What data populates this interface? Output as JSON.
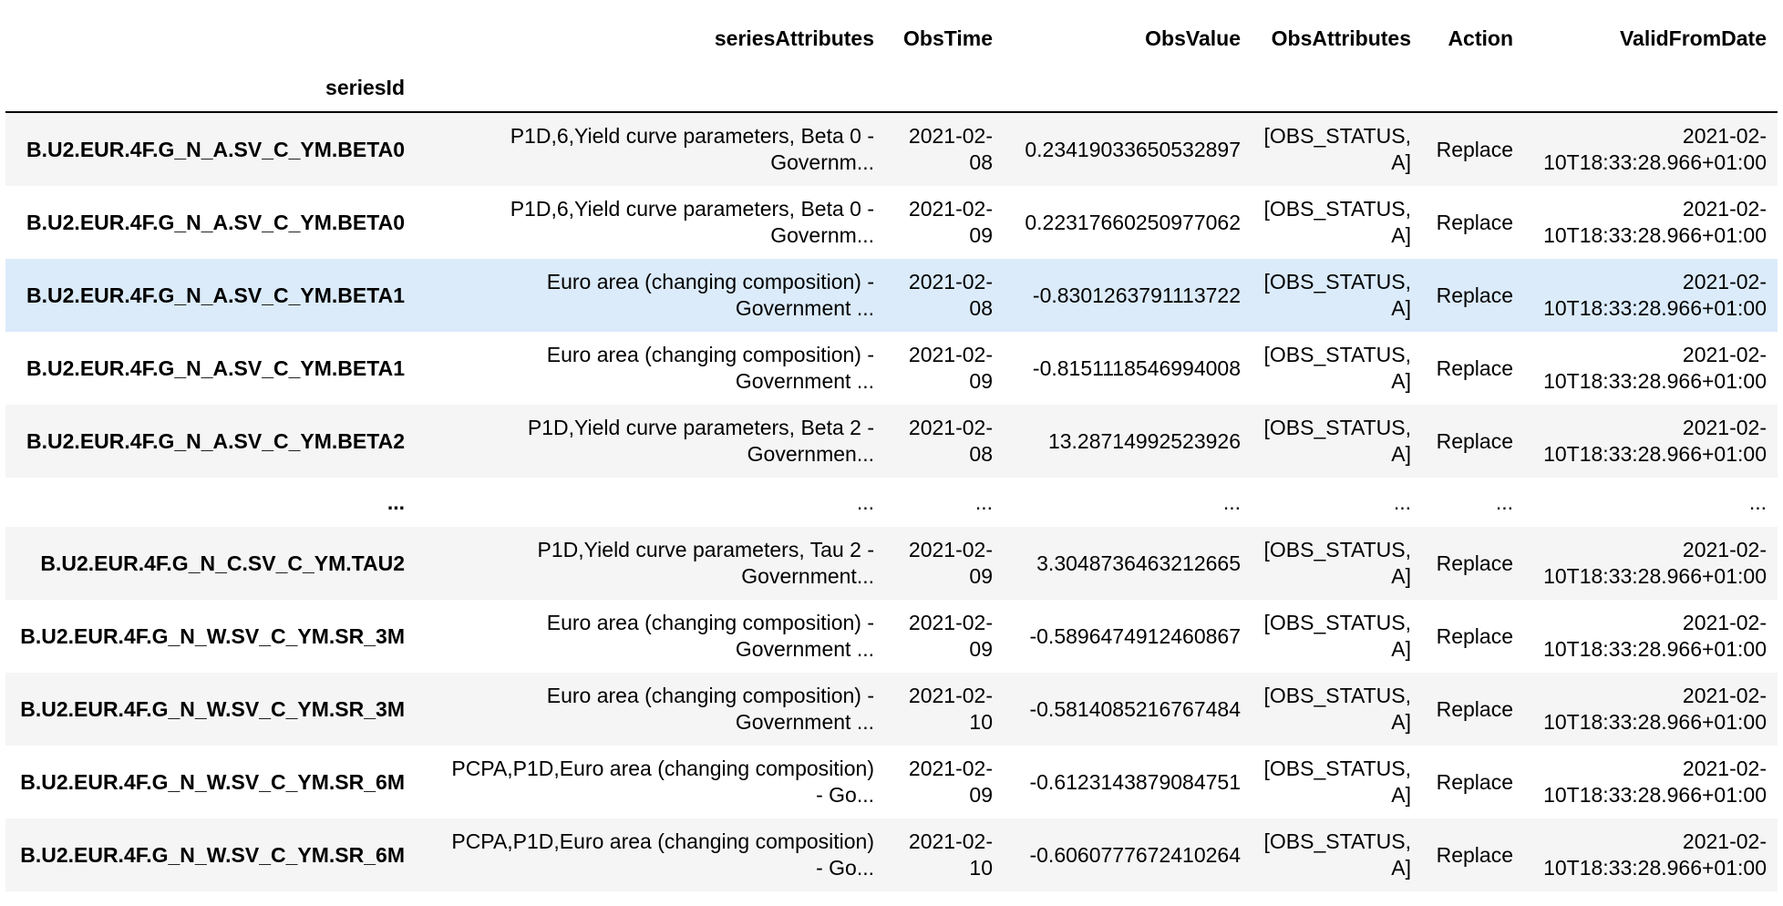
{
  "header": {
    "columns": [
      "seriesAttributes",
      "ObsTime",
      "ObsValue",
      "ObsAttributes",
      "Action",
      "ValidFromDate"
    ],
    "index_name": "seriesId"
  },
  "rows": [
    {
      "seriesId": "B.U2.EUR.4F.G_N_A.SV_C_YM.BETA0",
      "attr1": "P1D,6,Yield curve parameters, Beta 0 -",
      "attr2": "Governm...",
      "time1": "2021-02-",
      "time2": "08",
      "value": "0.23419033650532897",
      "obs1": "[OBS_STATUS,",
      "obs2": "A]",
      "action": "Replace",
      "valid1": "2021-02-",
      "valid2": "10T18:33:28.966+01:00"
    },
    {
      "seriesId": "B.U2.EUR.4F.G_N_A.SV_C_YM.BETA0",
      "attr1": "P1D,6,Yield curve parameters, Beta 0 -",
      "attr2": "Governm...",
      "time1": "2021-02-",
      "time2": "09",
      "value": "0.22317660250977062",
      "obs1": "[OBS_STATUS,",
      "obs2": "A]",
      "action": "Replace",
      "valid1": "2021-02-",
      "valid2": "10T18:33:28.966+01:00"
    },
    {
      "seriesId": "B.U2.EUR.4F.G_N_A.SV_C_YM.BETA1",
      "attr1": "Euro area (changing composition) -",
      "attr2": "Government ...",
      "time1": "2021-02-",
      "time2": "08",
      "value": "-0.8301263791113722",
      "obs1": "[OBS_STATUS,",
      "obs2": "A]",
      "action": "Replace",
      "valid1": "2021-02-",
      "valid2": "10T18:33:28.966+01:00"
    },
    {
      "seriesId": "B.U2.EUR.4F.G_N_A.SV_C_YM.BETA1",
      "attr1": "Euro area (changing composition) -",
      "attr2": "Government ...",
      "time1": "2021-02-",
      "time2": "09",
      "value": "-0.8151118546994008",
      "obs1": "[OBS_STATUS,",
      "obs2": "A]",
      "action": "Replace",
      "valid1": "2021-02-",
      "valid2": "10T18:33:28.966+01:00"
    },
    {
      "seriesId": "B.U2.EUR.4F.G_N_A.SV_C_YM.BETA2",
      "attr1": "P1D,Yield curve parameters, Beta 2 -",
      "attr2": "Governmen...",
      "time1": "2021-02-",
      "time2": "08",
      "value": "13.28714992523926",
      "obs1": "[OBS_STATUS,",
      "obs2": "A]",
      "action": "Replace",
      "valid1": "2021-02-",
      "valid2": "10T18:33:28.966+01:00"
    },
    {
      "ellipsis": "..."
    },
    {
      "seriesId": "B.U2.EUR.4F.G_N_C.SV_C_YM.TAU2",
      "attr1": "P1D,Yield curve parameters, Tau 2 -",
      "attr2": "Government...",
      "time1": "2021-02-",
      "time2": "09",
      "value": "3.3048736463212665",
      "obs1": "[OBS_STATUS,",
      "obs2": "A]",
      "action": "Replace",
      "valid1": "2021-02-",
      "valid2": "10T18:33:28.966+01:00"
    },
    {
      "seriesId": "B.U2.EUR.4F.G_N_W.SV_C_YM.SR_3M",
      "attr1": "Euro area (changing composition) -",
      "attr2": "Government ...",
      "time1": "2021-02-",
      "time2": "09",
      "value": "-0.5896474912460867",
      "obs1": "[OBS_STATUS,",
      "obs2": "A]",
      "action": "Replace",
      "valid1": "2021-02-",
      "valid2": "10T18:33:28.966+01:00"
    },
    {
      "seriesId": "B.U2.EUR.4F.G_N_W.SV_C_YM.SR_3M",
      "attr1": "Euro area (changing composition) -",
      "attr2": "Government ...",
      "time1": "2021-02-",
      "time2": "10",
      "value": "-0.5814085216767484",
      "obs1": "[OBS_STATUS,",
      "obs2": "A]",
      "action": "Replace",
      "valid1": "2021-02-",
      "valid2": "10T18:33:28.966+01:00"
    },
    {
      "seriesId": "B.U2.EUR.4F.G_N_W.SV_C_YM.SR_6M",
      "attr1": "PCPA,P1D,Euro area (changing composition)",
      "attr2": "- Go...",
      "time1": "2021-02-",
      "time2": "09",
      "value": "-0.6123143879084751",
      "obs1": "[OBS_STATUS,",
      "obs2": "A]",
      "action": "Replace",
      "valid1": "2021-02-",
      "valid2": "10T18:33:28.966+01:00"
    },
    {
      "seriesId": "B.U2.EUR.4F.G_N_W.SV_C_YM.SR_6M",
      "attr1": "PCPA,P1D,Euro area (changing composition)",
      "attr2": "- Go...",
      "time1": "2021-02-",
      "time2": "10",
      "value": "-0.6060777672410264",
      "obs1": "[OBS_STATUS,",
      "obs2": "A]",
      "action": "Replace",
      "valid1": "2021-02-",
      "valid2": "10T18:33:28.966+01:00"
    }
  ],
  "hovered_row": 2,
  "colors": {
    "stripe": "#f5f5f5",
    "hover": "#dbebfa",
    "rule": "#000000"
  }
}
